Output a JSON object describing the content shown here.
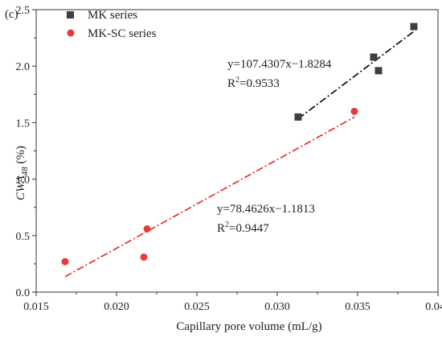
{
  "chart_data": {
    "type": "scatter",
    "panel_label": "(c)",
    "xlabel": "Capillary pore volume (mL/g)",
    "ylabel": {
      "main": "CWA",
      "sub": "48",
      "unit": " (%)"
    },
    "xlim": [
      0.015,
      0.04
    ],
    "ylim": [
      0.0,
      2.5
    ],
    "xticks": [
      "0.015",
      "0.020",
      "0.025",
      "0.030",
      "0.035",
      "0.040"
    ],
    "yticks": [
      "0.0",
      "0.5",
      "1.0",
      "1.5",
      "2.0",
      "2.5"
    ],
    "legend_position": "top-left",
    "series": [
      {
        "name": "MK series",
        "marker": "square",
        "color": "#3f3f3f",
        "points": [
          [
            0.0313,
            1.55
          ],
          [
            0.036,
            2.08
          ],
          [
            0.0363,
            1.96
          ],
          [
            0.0385,
            2.35
          ]
        ],
        "fit": {
          "x": [
            0.0313,
            0.0385
          ],
          "line_color": "#000000"
        },
        "equation": "y=107.4307x−1.8284",
        "r2": {
          "prefix": "R",
          "sup": "2",
          "value": "=0.9533"
        }
      },
      {
        "name": "MK-SC series",
        "marker": "circle",
        "color": "#e83a3a",
        "points": [
          [
            0.0168,
            0.27
          ],
          [
            0.0217,
            0.31
          ],
          [
            0.0219,
            0.56
          ],
          [
            0.0348,
            1.6
          ]
        ],
        "fit": {
          "x": [
            0.0168,
            0.0348
          ],
          "line_color": "#e8221e"
        },
        "equation": "y=78.4626x−1.1813",
        "r2": {
          "prefix": "R",
          "sup": "2",
          "value": "=0.9447"
        }
      }
    ]
  }
}
